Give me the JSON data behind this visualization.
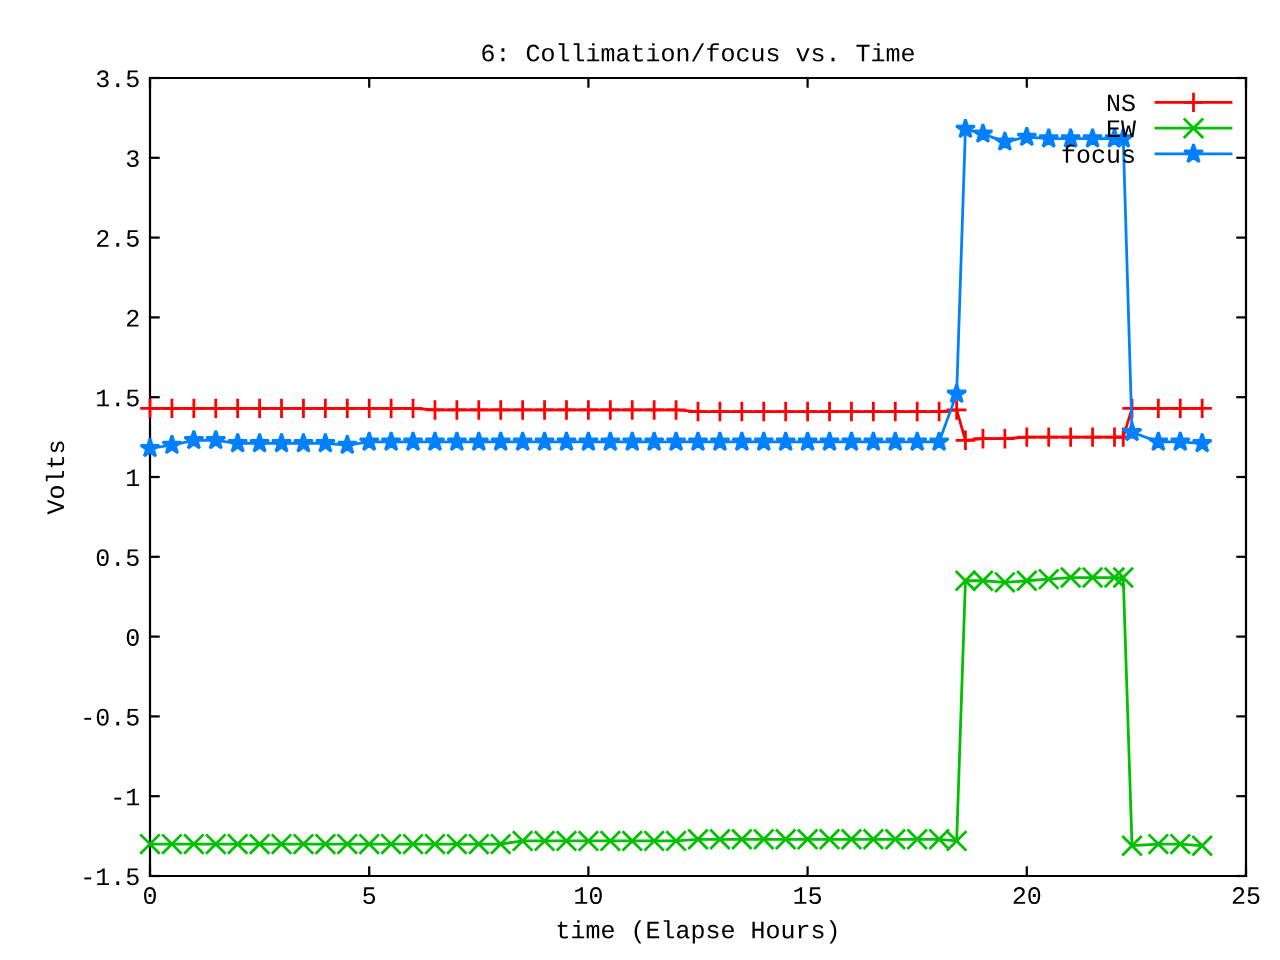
{
  "chart_data": {
    "type": "line",
    "title": "6: Collimation/focus vs. Time",
    "xlabel": "time (Elapse Hours)",
    "ylabel": "Volts",
    "x": [
      0,
      0.5,
      1,
      1.5,
      2,
      2.5,
      3,
      3.5,
      4,
      4.5,
      5,
      5.5,
      6,
      6.5,
      7,
      7.5,
      8,
      8.5,
      9,
      9.5,
      10,
      10.5,
      11,
      11.5,
      12,
      12.5,
      13,
      13.5,
      14,
      14.5,
      15,
      15.5,
      16,
      16.5,
      17,
      17.5,
      18,
      18.4,
      18.6,
      19,
      19.5,
      20,
      20.5,
      21,
      21.5,
      22,
      22.2,
      22.4,
      23,
      23.5,
      24
    ],
    "series": [
      {
        "name": "NS",
        "color": "#ff0000",
        "marker": "cross",
        "values": [
          1.43,
          1.43,
          1.43,
          1.43,
          1.43,
          1.43,
          1.43,
          1.43,
          1.43,
          1.43,
          1.43,
          1.43,
          1.43,
          1.42,
          1.42,
          1.42,
          1.42,
          1.42,
          1.42,
          1.42,
          1.42,
          1.42,
          1.42,
          1.42,
          1.42,
          1.41,
          1.41,
          1.41,
          1.41,
          1.41,
          1.41,
          1.41,
          1.41,
          1.41,
          1.41,
          1.41,
          1.41,
          1.42,
          1.23,
          1.24,
          1.24,
          1.25,
          1.25,
          1.25,
          1.25,
          1.25,
          1.25,
          1.43,
          1.43,
          1.43,
          1.43
        ]
      },
      {
        "name": "EW",
        "color": "#00c000",
        "marker": "x",
        "values": [
          -1.3,
          -1.3,
          -1.3,
          -1.3,
          -1.3,
          -1.3,
          -1.3,
          -1.3,
          -1.3,
          -1.3,
          -1.3,
          -1.3,
          -1.3,
          -1.3,
          -1.3,
          -1.3,
          -1.3,
          -1.28,
          -1.28,
          -1.28,
          -1.28,
          -1.28,
          -1.28,
          -1.28,
          -1.28,
          -1.27,
          -1.27,
          -1.27,
          -1.27,
          -1.27,
          -1.27,
          -1.27,
          -1.27,
          -1.27,
          -1.27,
          -1.27,
          -1.27,
          -1.28,
          0.35,
          0.35,
          0.34,
          0.35,
          0.36,
          0.37,
          0.37,
          0.37,
          0.37,
          -1.31,
          -1.3,
          -1.3,
          -1.31
        ]
      },
      {
        "name": "focus",
        "color": "#0080ff",
        "marker": "star",
        "values": [
          1.18,
          1.2,
          1.23,
          1.23,
          1.21,
          1.21,
          1.21,
          1.21,
          1.21,
          1.2,
          1.22,
          1.22,
          1.22,
          1.22,
          1.22,
          1.22,
          1.22,
          1.22,
          1.22,
          1.22,
          1.22,
          1.22,
          1.22,
          1.22,
          1.22,
          1.22,
          1.22,
          1.22,
          1.22,
          1.22,
          1.22,
          1.22,
          1.22,
          1.22,
          1.22,
          1.22,
          1.22,
          1.52,
          3.18,
          3.15,
          3.1,
          3.13,
          3.12,
          3.12,
          3.12,
          3.12,
          3.12,
          1.28,
          1.22,
          1.22,
          1.21
        ]
      }
    ],
    "xlim": [
      0,
      25
    ],
    "xticks": [
      0,
      5,
      10,
      15,
      20,
      25
    ],
    "ylim": [
      -1.5,
      3.5
    ],
    "yticks": [
      -1.5,
      -1,
      -0.5,
      0,
      0.5,
      1,
      1.5,
      2,
      2.5,
      3,
      3.5
    ],
    "legend": "top right",
    "grid": false,
    "line_style": "solid"
  }
}
